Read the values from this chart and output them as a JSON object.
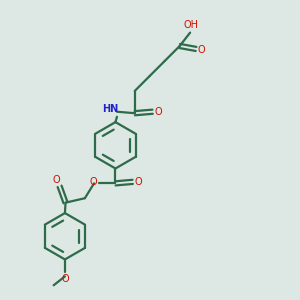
{
  "bg_color": "#dde8e4",
  "bond_color": "#2d6b4a",
  "oxygen_color": "#cc1100",
  "nitrogen_color": "#2222cc",
  "lw": 1.6,
  "figsize": [
    3.0,
    3.0
  ],
  "dpi": 100,
  "xlim": [
    0,
    10
  ],
  "ylim": [
    0,
    10
  ]
}
